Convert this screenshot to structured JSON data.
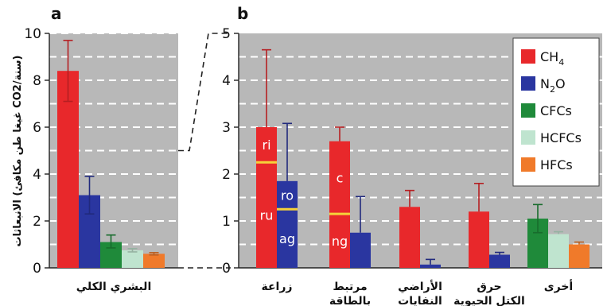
{
  "colors": {
    "CH4": "#e8282b",
    "N2O": "#2a36a0",
    "CFCs": "#1f8a3a",
    "HCFCs": "#bfe4cf",
    "HFCs": "#f07a2a",
    "divider": "#f5d23a",
    "background": "#b8b8b8"
  },
  "chart_data": [
    {
      "panel": "a",
      "type": "bar",
      "ylabel": "الانبعاثات (غيغا طن مكافئ CO2/سنة)",
      "ylim": [
        0,
        10
      ],
      "yticks": [
        "0",
        "2",
        "4",
        "6",
        "8",
        "10"
      ],
      "grid": true,
      "categories": [
        "البشري الكلي"
      ],
      "series": [
        {
          "name": "CH4",
          "values": [
            8.4
          ],
          "err_low": [
            7.1
          ],
          "err_high": [
            9.7
          ]
        },
        {
          "name": "N2O",
          "values": [
            3.1
          ],
          "err_low": [
            2.3
          ],
          "err_high": [
            3.9
          ]
        },
        {
          "name": "CFCs",
          "values": [
            1.1
          ],
          "err_low": [
            0.85
          ],
          "err_high": [
            1.4
          ]
        },
        {
          "name": "HCFCs",
          "values": [
            0.75
          ],
          "err_low": [
            0.68
          ],
          "err_high": [
            0.82
          ]
        },
        {
          "name": "HFCs",
          "values": [
            0.6
          ],
          "err_low": [
            0.55
          ],
          "err_high": [
            0.65
          ]
        }
      ]
    },
    {
      "panel": "b",
      "type": "bar",
      "ylim": [
        0,
        5
      ],
      "yticks": [
        "0",
        "1",
        "2",
        "3",
        "4",
        "5"
      ],
      "grid": true,
      "legend": "top-right",
      "categories": [
        "زراعة",
        "مرتبط بالطاقة",
        "الأراضي النفايات",
        "حرق الكتل الحيوية",
        "أخرى"
      ],
      "series": [
        {
          "name": "CH4",
          "values": [
            3.0,
            2.7,
            1.3,
            1.2,
            0
          ],
          "err_high": [
            4.65,
            3.0,
            1.65,
            1.8,
            0
          ]
        },
        {
          "name": "N2O",
          "values": [
            1.85,
            0.75,
            0.07,
            0.28,
            0
          ],
          "err_high": [
            3.08,
            1.52,
            0.18,
            0.33,
            0
          ]
        },
        {
          "name": "CFCs",
          "values": [
            0,
            0,
            0,
            0,
            1.05
          ],
          "err_low": [
            0,
            0,
            0,
            0,
            0.75
          ],
          "err_high": [
            0,
            0,
            0,
            0,
            1.35
          ]
        },
        {
          "name": "HCFCs",
          "values": [
            0,
            0,
            0,
            0,
            0.72
          ],
          "err_high": [
            0,
            0,
            0,
            0,
            0.77
          ]
        },
        {
          "name": "HFCs",
          "values": [
            0,
            0,
            0,
            0,
            0.5
          ],
          "err_high": [
            0,
            0,
            0,
            0,
            0.55
          ]
        }
      ],
      "bar_splits": [
        {
          "category": 0,
          "series": "CH4",
          "at": 2.25,
          "upper": "ri",
          "lower": "ru"
        },
        {
          "category": 0,
          "series": "N2O",
          "at": 1.25,
          "upper": "ro",
          "lower": "ag"
        },
        {
          "category": 1,
          "series": "CH4",
          "at": 1.15,
          "upper": "c",
          "lower": "ng"
        }
      ]
    }
  ],
  "legend": [
    {
      "label": "CH",
      "sub": "4",
      "key": "CH4"
    },
    {
      "label": "N",
      "mid": "2",
      "tail": "O",
      "key": "N2O"
    },
    {
      "label": "CFCs",
      "key": "CFCs"
    },
    {
      "label": "HCFCs",
      "key": "HCFCs"
    },
    {
      "label": "HFCs",
      "key": "HFCs"
    }
  ],
  "panel_labels": {
    "a": "a",
    "b": "b"
  }
}
